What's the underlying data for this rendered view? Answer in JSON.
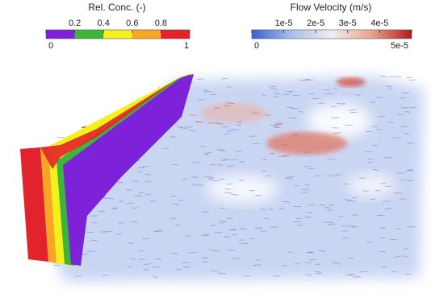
{
  "colorbars": [
    {
      "title": "Rel. Conc. (-)",
      "range": [
        0,
        1
      ],
      "ticks": [
        0,
        0.2,
        0.4,
        0.6,
        0.8,
        1
      ],
      "colors": [
        "#7d22d8",
        "#3db53a",
        "#f4f01c",
        "#f6a524",
        "#e3232b"
      ]
    },
    {
      "title": "Flow Velocity (m/s)",
      "range": [
        0,
        5e-05
      ],
      "ticks": [
        0,
        {
          "value": 1e-05,
          "label": "1e-5"
        },
        {
          "value": 2e-05,
          "label": "2e-5"
        },
        {
          "value": 3e-05,
          "label": "3e-5"
        },
        {
          "value": 4e-05,
          "label": "4e-5"
        },
        {
          "value": 5e-05,
          "label": "5e-5"
        }
      ],
      "colors": [
        "#3a5fd0",
        "#a9c0ea",
        "#eeeeee",
        "#e8a48c",
        "#b01a22"
      ]
    }
  ]
}
